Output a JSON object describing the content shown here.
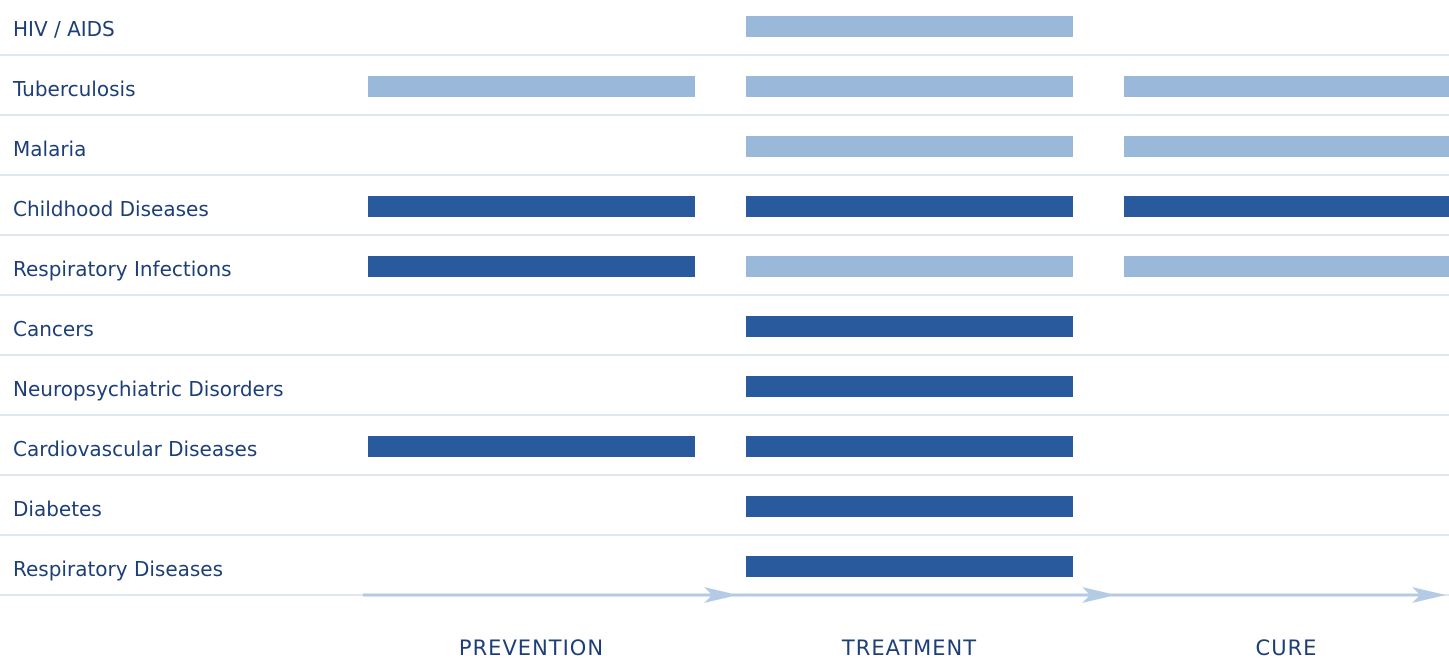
{
  "colors": {
    "dark": "#2a5a9e",
    "light": "#9ab8da",
    "text": "#1d3f78",
    "divider": "#dfe8f2",
    "arrow": "#b3cbe4"
  },
  "phases": [
    "PREVENTION",
    "TREATMENT",
    "CURE"
  ],
  "rows": [
    {
      "label": "HIV / AIDS",
      "cells": [
        "",
        "light",
        ""
      ]
    },
    {
      "label": "Tuberculosis",
      "cells": [
        "light",
        "light",
        "light"
      ]
    },
    {
      "label": "Malaria",
      "cells": [
        "",
        "light",
        "light"
      ]
    },
    {
      "label": "Childhood Diseases",
      "cells": [
        "dark",
        "dark",
        "dark"
      ]
    },
    {
      "label": "Respiratory Infections",
      "cells": [
        "dark",
        "light",
        "light"
      ]
    },
    {
      "label": "Cancers",
      "cells": [
        "",
        "dark",
        ""
      ]
    },
    {
      "label": "Neuropsychiatric Disorders",
      "cells": [
        "",
        "dark",
        ""
      ]
    },
    {
      "label": "Cardiovascular Diseases",
      "cells": [
        "dark",
        "dark",
        ""
      ]
    },
    {
      "label": "Diabetes",
      "cells": [
        "",
        "dark",
        ""
      ]
    },
    {
      "label": "Respiratory Diseases",
      "cells": [
        "",
        "dark",
        ""
      ]
    }
  ]
}
